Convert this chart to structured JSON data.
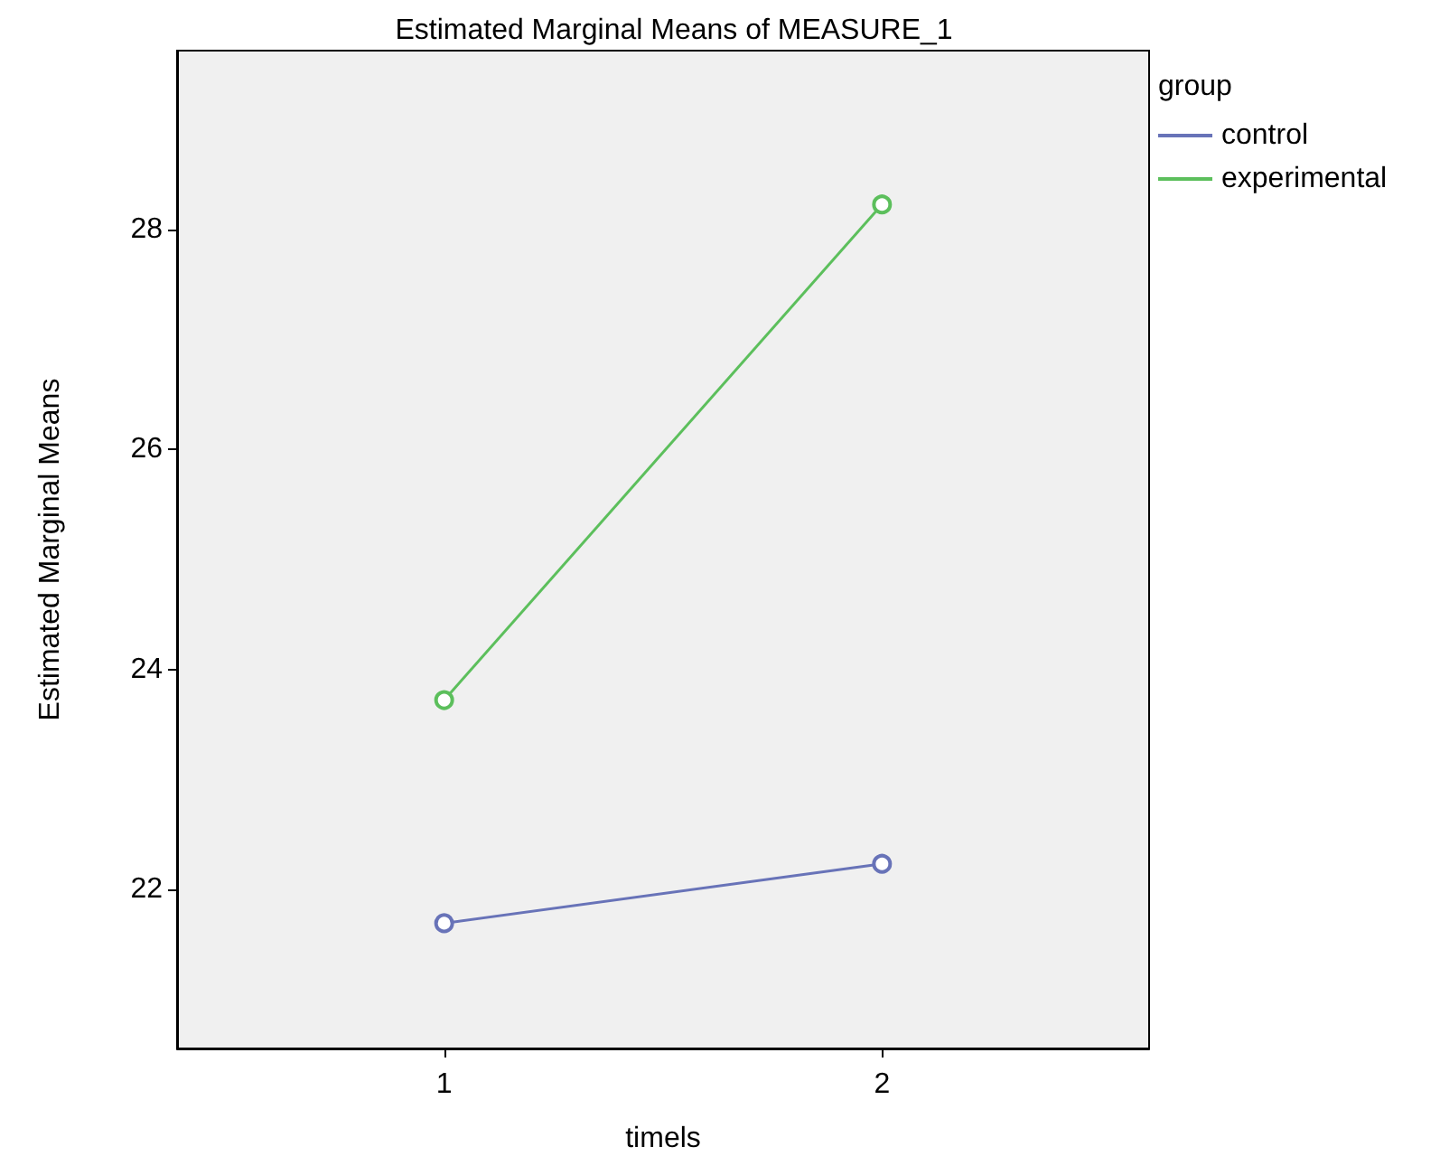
{
  "chart_data": {
    "type": "line",
    "title": "Estimated Marginal Means of MEASURE_1",
    "xlabel": "timels",
    "ylabel": "Estimated Marginal Means",
    "legend_title": "group",
    "x": [
      1,
      2
    ],
    "xlim": [
      0.39,
      2.61
    ],
    "xticks": [
      1,
      2
    ],
    "ylim": [
      20.55,
      29.63
    ],
    "yticks": [
      22,
      24,
      26,
      28
    ],
    "series": [
      {
        "name": "control",
        "color": "#6873b8",
        "values": [
          21.69,
          22.23
        ]
      },
      {
        "name": "experimental",
        "color": "#5cbf5c",
        "values": [
          23.72,
          28.23
        ]
      }
    ],
    "legend": "top right",
    "grid": false,
    "marker": "circle",
    "line_style": "solid"
  }
}
